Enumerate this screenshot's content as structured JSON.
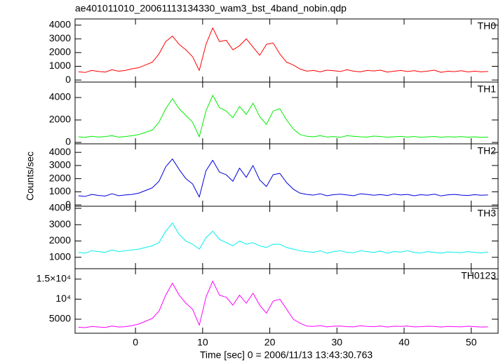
{
  "chart_data": {
    "type": "line",
    "title": "ae401011010_20061113134330_wam3_bst_4band_nobin.qdp",
    "ylabel": "Counts/sec",
    "xlabel": "Time [sec] 0 = 2006/11/13 13:43:30.763",
    "xlim": [
      -9,
      54
    ],
    "xticks": [
      0,
      10,
      20,
      30,
      40,
      50
    ],
    "x": [
      -8.5,
      -7.5,
      -6.5,
      -5.5,
      -4.5,
      -3.5,
      -2.5,
      -1.5,
      -0.5,
      0.5,
      1.5,
      2.5,
      3.5,
      4.5,
      5.5,
      6.5,
      7.5,
      8.5,
      9.5,
      10.5,
      11.5,
      12.5,
      13.5,
      14.5,
      15.5,
      16.5,
      17.5,
      18.5,
      19.5,
      20.5,
      21.5,
      22.5,
      23.5,
      24.5,
      25.5,
      26.5,
      27.5,
      28.5,
      29.5,
      30.5,
      31.5,
      32.5,
      33.5,
      34.5,
      35.5,
      36.5,
      37.5,
      38.5,
      39.5,
      40.5,
      41.5,
      42.5,
      43.5,
      44.5,
      45.5,
      46.5,
      47.5,
      48.5,
      49.5,
      50.5,
      51.5,
      52.5
    ],
    "series": [
      {
        "name": "TH0",
        "color": "#ff0000",
        "ylim": [
          -150,
          4450
        ],
        "yticks": [
          0,
          1000,
          2000,
          3000,
          4000
        ],
        "values": [
          600,
          550,
          700,
          620,
          580,
          750,
          640,
          700,
          820,
          900,
          1100,
          1300,
          1900,
          2800,
          3200,
          2600,
          2200,
          1700,
          700,
          2600,
          3800,
          2800,
          2900,
          2200,
          2500,
          3000,
          2400,
          1800,
          2600,
          2700,
          1900,
          1300,
          1100,
          800,
          650,
          700,
          600,
          720,
          680,
          620,
          750,
          640,
          600,
          700,
          660,
          720,
          580,
          640,
          700,
          620,
          680,
          600,
          650,
          720,
          560,
          640,
          610,
          680,
          590,
          640,
          600,
          620
        ]
      },
      {
        "name": "TH1",
        "color": "#00ee00",
        "ylim": [
          -125,
          5375
        ],
        "yticks": [
          0,
          2000,
          4000
        ],
        "values": [
          500,
          450,
          550,
          480,
          520,
          600,
          470,
          520,
          600,
          700,
          900,
          1100,
          1800,
          3000,
          3900,
          3000,
          2400,
          1800,
          500,
          2800,
          4200,
          3100,
          2800,
          2200,
          3200,
          2500,
          3500,
          2300,
          1600,
          2800,
          3000,
          2000,
          1200,
          700,
          550,
          500,
          600,
          480,
          520,
          450,
          600,
          550,
          500,
          480,
          560,
          520,
          470,
          500,
          540,
          480,
          520,
          450,
          500,
          530,
          460,
          510,
          480,
          520,
          470,
          500,
          450,
          480
        ]
      },
      {
        "name": "TH2",
        "color": "#0000dd",
        "ylim": [
          -100,
          4650
        ],
        "yticks": [
          0,
          1000,
          2000,
          3000,
          4000
        ],
        "values": [
          700,
          650,
          800,
          720,
          680,
          850,
          700,
          760,
          800,
          900,
          1100,
          1300,
          1800,
          2900,
          3500,
          2700,
          2000,
          1600,
          600,
          2600,
          3400,
          2500,
          2300,
          1800,
          2800,
          2100,
          3000,
          1900,
          1400,
          2300,
          2400,
          1700,
          1200,
          900,
          800,
          750,
          850,
          700,
          780,
          820,
          760,
          700,
          850,
          800,
          740,
          790,
          720,
          830,
          760,
          800,
          700,
          780,
          740,
          820,
          690,
          770,
          800,
          750,
          720,
          780,
          740,
          760
        ]
      },
      {
        "name": "TH3",
        "color": "#00eeee",
        "ylim": [
          300,
          4130
        ],
        "yticks": [
          1000,
          2000,
          3000,
          4000
        ],
        "values": [
          1300,
          1250,
          1400,
          1350,
          1300,
          1450,
          1350,
          1400,
          1450,
          1500,
          1600,
          1700,
          1900,
          2600,
          3100,
          2400,
          2000,
          1800,
          1500,
          2200,
          2600,
          2100,
          1900,
          1700,
          2000,
          1800,
          1900,
          1700,
          1600,
          1800,
          1800,
          1600,
          1500,
          1400,
          1350,
          1300,
          1400,
          1250,
          1350,
          1400,
          1300,
          1280,
          1400,
          1350,
          1300,
          1380,
          1250,
          1350,
          1320,
          1400,
          1300,
          1260,
          1350,
          1300,
          1250,
          1330,
          1300,
          1280,
          1350,
          1300,
          1270,
          1320
        ]
      },
      {
        "name": "TH0123",
        "color": "#ff00ff",
        "ylim": [
          1500,
          17600
        ],
        "yticks": [
          5000,
          {
            "value": 10000,
            "label": "10⁴"
          },
          {
            "value": 15000,
            "label": "1.5×10⁴"
          }
        ],
        "values": [
          3000,
          2900,
          3200,
          3050,
          2950,
          3300,
          3050,
          3150,
          3400,
          3800,
          4500,
          5200,
          7000,
          11000,
          14000,
          11000,
          9000,
          7500,
          3500,
          10500,
          14500,
          11000,
          10500,
          8500,
          11000,
          9000,
          11500,
          8500,
          6500,
          9500,
          10000,
          7500,
          5000,
          4000,
          3300,
          3200,
          3400,
          3100,
          3250,
          3300,
          3150,
          3100,
          3350,
          3200,
          3150,
          3300,
          3050,
          3250,
          3200,
          3300,
          3100,
          3150,
          3250,
          3200,
          3050,
          3200,
          3150,
          3100,
          3250,
          3150,
          3050,
          3100
        ]
      }
    ]
  }
}
